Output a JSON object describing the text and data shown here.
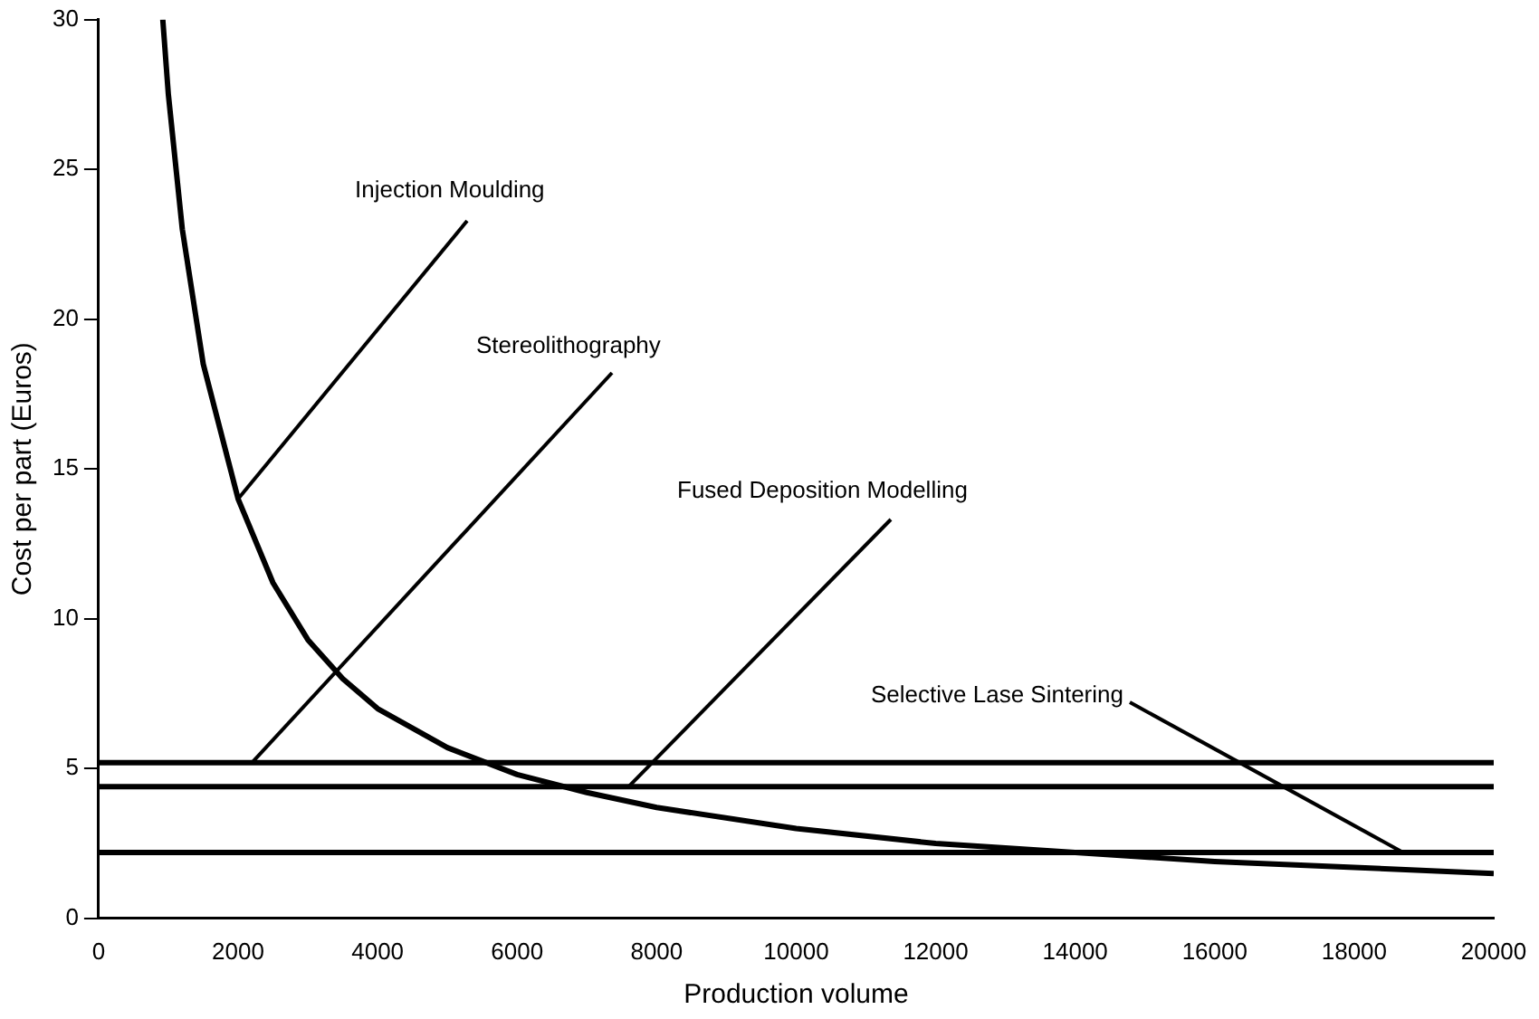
{
  "chart_data": {
    "type": "line",
    "xlabel": "Production volume",
    "ylabel": "Cost per part (Euros)",
    "xlim": [
      0,
      20000
    ],
    "xticks": [
      0,
      2000,
      4000,
      6000,
      8000,
      10000,
      12000,
      14000,
      16000,
      18000,
      20000
    ],
    "ylim": [
      0,
      30
    ],
    "yticks": [
      0,
      5,
      10,
      15,
      20,
      25,
      30
    ],
    "grid": false,
    "legend": false,
    "marker": "none",
    "line_style": "solid",
    "series": [
      {
        "color": "#000000",
        "x": [
          920,
          1000,
          1200,
          1500,
          2000,
          2500,
          3000,
          3500,
          4000,
          5000,
          6000,
          7000,
          8000,
          10000,
          12000,
          14000,
          16000,
          18000,
          20000
        ],
        "values": [
          30,
          27.5,
          23,
          18.5,
          14,
          11.2,
          9.3,
          8,
          7,
          5.7,
          4.8,
          4.2,
          3.7,
          3,
          2.5,
          2.2,
          1.9,
          1.7,
          1.5
        ]
      },
      {
        "color": "#000000",
        "x": [
          0,
          20000
        ],
        "values": [
          5.2,
          5.2
        ]
      },
      {
        "color": "#000000",
        "x": [
          0,
          20000
        ],
        "values": [
          4.4,
          4.4
        ]
      },
      {
        "color": "#000000",
        "x": [
          0,
          20000
        ],
        "values": [
          2.2,
          2.2
        ]
      }
    ],
    "annotations": [
      {
        "text": "Injection Moulding",
        "x": 2000,
        "y": 14
      },
      {
        "text": "Stereolithography",
        "x": 2200,
        "y": 5.2
      },
      {
        "text": "Fused Deposition Modelling",
        "x": 7600,
        "y": 4.4
      },
      {
        "text": "Selective Lase Sintering",
        "x": 18700,
        "y": 2.2
      }
    ]
  }
}
